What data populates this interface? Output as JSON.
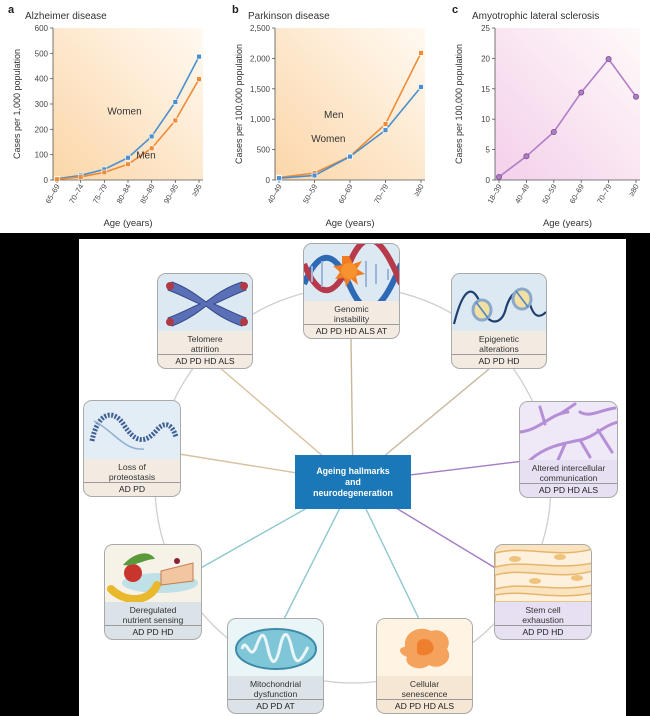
{
  "panels": [
    {
      "letter": "a",
      "title": "Alzheimer disease",
      "ylabel": "Cases per 1,000 population",
      "xlabel": "Age (years)",
      "yticks": [
        "0",
        "100",
        "200",
        "300",
        "400",
        "500",
        "600"
      ],
      "xticks": [
        "65–69",
        "70–74",
        "75–79",
        "80–84",
        "85–89",
        "90–95",
        "≥95"
      ],
      "series_labels": [
        "Women",
        "Men"
      ]
    },
    {
      "letter": "b",
      "title": "Parkinson disease",
      "ylabel": "Cases per 100,000 population",
      "xlabel": "Age (years)",
      "yticks": [
        "0",
        "500",
        "1,000",
        "1,500",
        "2,000",
        "2,500"
      ],
      "xticks": [
        "40–49",
        "50–59",
        "60–69",
        "70–79",
        "≥80"
      ],
      "series_labels": [
        "Men",
        "Women"
      ]
    },
    {
      "letter": "c",
      "title": "Amyotrophic lateral sclerosis",
      "ylabel": "Cases per 100,000 population",
      "xlabel": "Age (years)",
      "yticks": [
        "0",
        "5",
        "10",
        "15",
        "20",
        "25"
      ],
      "xticks": [
        "18–39",
        "40–49",
        "50–59",
        "60–69",
        "70–79",
        "≥80"
      ],
      "series_labels": []
    }
  ],
  "chart_data": [
    {
      "type": "line",
      "title": "Alzheimer disease",
      "xlabel": "Age (years)",
      "ylabel": "Cases per 1,000 population",
      "categories": [
        "65–69",
        "70–74",
        "75–79",
        "80–84",
        "85–89",
        "90–95",
        "≥95"
      ],
      "ylim": [
        0,
        600
      ],
      "series": [
        {
          "name": "Women",
          "color": "#4a8fcf",
          "values": [
            5,
            18,
            42,
            88,
            172,
            308,
            487
          ]
        },
        {
          "name": "Men",
          "color": "#ef8a35",
          "values": [
            3,
            12,
            30,
            62,
            125,
            235,
            398
          ]
        }
      ]
    },
    {
      "type": "line",
      "title": "Parkinson disease",
      "xlabel": "Age (years)",
      "ylabel": "Cases per 100,000 population",
      "categories": [
        "40–49",
        "50–59",
        "60–69",
        "70–79",
        "≥80"
      ],
      "ylim": [
        0,
        2500
      ],
      "series": [
        {
          "name": "Men",
          "color": "#ef8a35",
          "values": [
            40,
            115,
            390,
            920,
            2090
          ]
        },
        {
          "name": "Women",
          "color": "#4a8fcf",
          "values": [
            30,
            75,
            385,
            820,
            1530
          ]
        }
      ]
    },
    {
      "type": "line",
      "title": "Amyotrophic lateral sclerosis",
      "xlabel": "Age (years)",
      "ylabel": "Cases per 100,000 population",
      "categories": [
        "18–39",
        "40–49",
        "50–59",
        "60–69",
        "70–79",
        "≥80"
      ],
      "ylim": [
        0,
        25
      ],
      "series": [
        {
          "color": "#b07cc6",
          "values": [
            0.5,
            3.9,
            7.9,
            14.4,
            19.9,
            13.7
          ]
        }
      ]
    }
  ],
  "diagram": {
    "center_lines": [
      "Ageing hallmarks",
      "and",
      "neurodegeneration"
    ],
    "hallmarks": [
      {
        "id": "genomic",
        "label_lines": [
          "Genomic",
          "instability"
        ],
        "diseases": "AD PD HD ALS AT"
      },
      {
        "id": "epigenetic",
        "label_lines": [
          "Epigenetic",
          "alterations"
        ],
        "diseases": "AD PD HD"
      },
      {
        "id": "intercellular",
        "label_lines": [
          "Altered intercellular",
          "communication"
        ],
        "diseases": "AD PD HD ALS"
      },
      {
        "id": "stemcell",
        "label_lines": [
          "Stem cell",
          "exhaustion"
        ],
        "diseases": "AD PD HD"
      },
      {
        "id": "senescence",
        "label_lines": [
          "Cellular",
          "senescence"
        ],
        "diseases": "AD PD HD ALS"
      },
      {
        "id": "mitochondrial",
        "label_lines": [
          "Mitochondrial",
          "dysfunction"
        ],
        "diseases": "AD PD AT"
      },
      {
        "id": "nutrient",
        "label_lines": [
          "Deregulated",
          "nutrient sensing"
        ],
        "diseases": "AD PD HD"
      },
      {
        "id": "proteostasis",
        "label_lines": [
          "Loss of",
          "proteostasis"
        ],
        "diseases": "AD PD"
      },
      {
        "id": "telomere",
        "label_lines": [
          "Telomere",
          "attrition"
        ],
        "diseases": "AD PD HD ALS"
      }
    ]
  }
}
